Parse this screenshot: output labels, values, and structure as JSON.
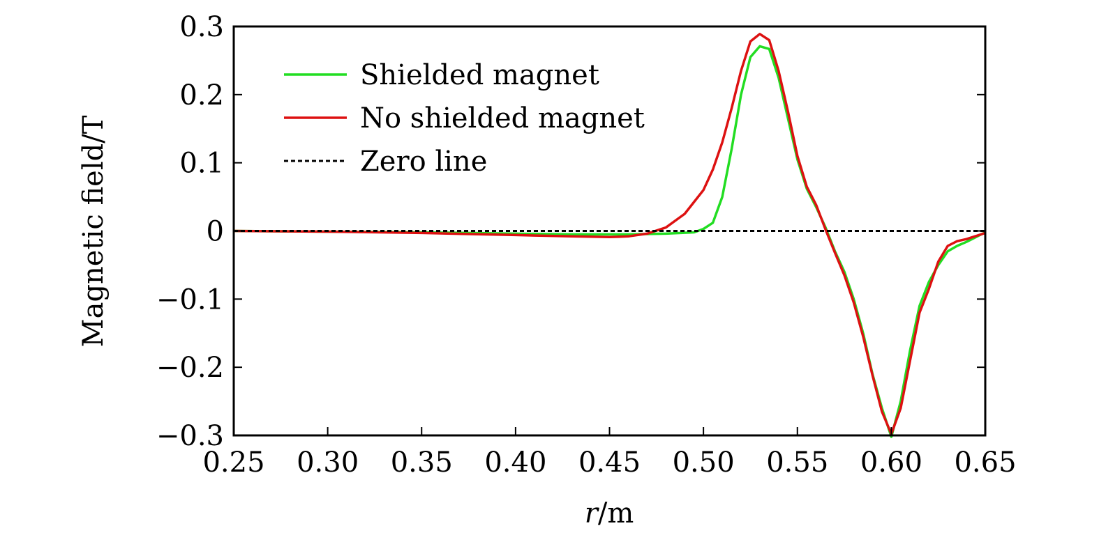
{
  "chart_data": {
    "type": "line",
    "title": "",
    "xlabel_var": "r",
    "xlabel_unit": "/m",
    "ylabel": "Magnetic field/T",
    "xlim": [
      0.25,
      0.65
    ],
    "ylim": [
      -0.3,
      0.3
    ],
    "xticks": [
      0.25,
      0.3,
      0.35,
      0.4,
      0.45,
      0.5,
      0.55,
      0.6,
      0.65
    ],
    "xtick_labels": [
      "0.25",
      "0.30",
      "0.35",
      "0.40",
      "0.45",
      "0.50",
      "0.55",
      "0.60",
      "0.65"
    ],
    "yticks": [
      0.3,
      0.2,
      0.1,
      0,
      -0.1,
      -0.2,
      -0.3
    ],
    "ytick_labels": [
      "0.3",
      "0.2",
      "0.1",
      "0",
      "−0.1",
      "−0.2",
      "−0.3"
    ],
    "grid": false,
    "legend_position": "top-left",
    "series": [
      {
        "name": "Shielded magnet",
        "color": "#22dd22",
        "style": "solid",
        "x": [
          0.25,
          0.3,
          0.35,
          0.4,
          0.43,
          0.46,
          0.48,
          0.495,
          0.5,
          0.505,
          0.51,
          0.515,
          0.52,
          0.525,
          0.53,
          0.535,
          0.54,
          0.545,
          0.55,
          0.555,
          0.56,
          0.565,
          0.57,
          0.575,
          0.58,
          0.585,
          0.59,
          0.595,
          0.6,
          0.605,
          0.61,
          0.615,
          0.62,
          0.625,
          0.63,
          0.635,
          0.64,
          0.65
        ],
        "y": [
          0,
          -0.001,
          -0.002,
          -0.004,
          -0.005,
          -0.005,
          -0.004,
          -0.002,
          0.003,
          0.012,
          0.05,
          0.12,
          0.2,
          0.255,
          0.271,
          0.267,
          0.225,
          0.165,
          0.105,
          0.062,
          0.035,
          0.005,
          -0.03,
          -0.06,
          -0.1,
          -0.15,
          -0.21,
          -0.26,
          -0.302,
          -0.25,
          -0.175,
          -0.11,
          -0.075,
          -0.05,
          -0.03,
          -0.022,
          -0.016,
          -0.002
        ]
      },
      {
        "name": "No shielded magnet",
        "color": "#dd1111",
        "style": "solid",
        "x": [
          0.25,
          0.3,
          0.35,
          0.4,
          0.43,
          0.45,
          0.46,
          0.47,
          0.48,
          0.49,
          0.5,
          0.505,
          0.51,
          0.515,
          0.52,
          0.525,
          0.53,
          0.535,
          0.54,
          0.545,
          0.55,
          0.555,
          0.56,
          0.565,
          0.57,
          0.575,
          0.58,
          0.585,
          0.59,
          0.595,
          0.6,
          0.605,
          0.61,
          0.615,
          0.62,
          0.625,
          0.63,
          0.635,
          0.64,
          0.65
        ],
        "y": [
          0,
          -0.001,
          -0.003,
          -0.006,
          -0.008,
          -0.009,
          -0.008,
          -0.004,
          0.005,
          0.025,
          0.06,
          0.09,
          0.13,
          0.18,
          0.235,
          0.278,
          0.289,
          0.28,
          0.235,
          0.175,
          0.11,
          0.065,
          0.038,
          0.002,
          -0.032,
          -0.065,
          -0.105,
          -0.155,
          -0.212,
          -0.265,
          -0.298,
          -0.26,
          -0.19,
          -0.12,
          -0.085,
          -0.045,
          -0.022,
          -0.015,
          -0.012,
          -0.003
        ]
      },
      {
        "name": "Zero line",
        "color": "#000000",
        "style": "dashed",
        "x": [
          0.25,
          0.65
        ],
        "y": [
          0,
          0
        ]
      }
    ]
  }
}
